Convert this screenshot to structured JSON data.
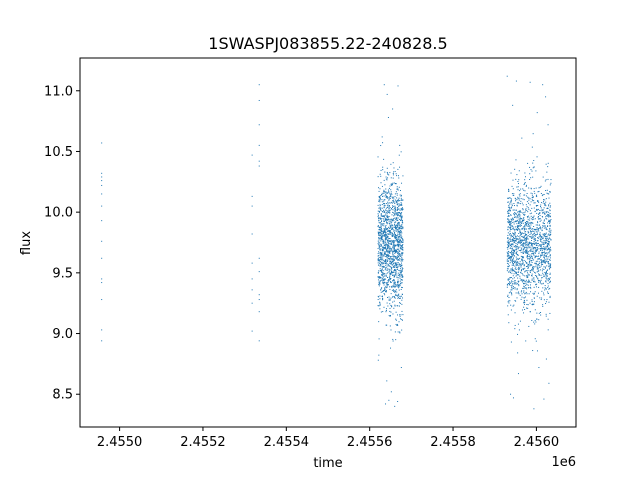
{
  "chart_data": {
    "type": "scatter",
    "title": "1SWASPJ083855.22-240828.5",
    "xlabel": "time",
    "ylabel": "flux",
    "x_offset_label": "1e6",
    "xlim": [
      2454905,
      2456095
    ],
    "ylim": [
      8.23,
      11.27
    ],
    "x_ticks": [
      2455000,
      2455200,
      2455400,
      2455600,
      2455800,
      2456000
    ],
    "x_tick_labels": [
      "2.4550",
      "2.4552",
      "2.4554",
      "2.4556",
      "2.4558",
      "2.4560"
    ],
    "y_ticks": [
      8.5,
      9.0,
      9.5,
      10.0,
      10.5,
      11.0
    ],
    "y_tick_labels": [
      "8.5",
      "9.0",
      "9.5",
      "10.0",
      "10.5",
      "11.0"
    ],
    "grid": false,
    "legend": "none",
    "marker_color": "#1f77b4",
    "series": [
      {
        "points": [
          [
            2454957,
            10.57
          ],
          [
            2454957,
            10.32
          ],
          [
            2454957,
            10.29
          ],
          [
            2454957,
            10.26
          ],
          [
            2454957,
            10.22
          ],
          [
            2454957,
            10.15
          ],
          [
            2454957,
            10.05
          ],
          [
            2454957,
            9.93
          ],
          [
            2454957,
            9.76
          ],
          [
            2454957,
            9.62
          ],
          [
            2454957,
            9.45
          ],
          [
            2454957,
            9.42
          ],
          [
            2454957,
            9.28
          ],
          [
            2454957,
            9.03
          ],
          [
            2454957,
            8.94
          ],
          [
            2455318,
            10.47
          ],
          [
            2455318,
            10.13
          ],
          [
            2455318,
            10.05
          ],
          [
            2455318,
            9.82
          ],
          [
            2455318,
            9.58
          ],
          [
            2455318,
            9.45
          ],
          [
            2455318,
            9.36
          ],
          [
            2455318,
            9.25
          ],
          [
            2455318,
            9.02
          ],
          [
            2455335,
            11.05
          ],
          [
            2455335,
            10.92
          ],
          [
            2455335,
            10.72
          ],
          [
            2455335,
            10.55
          ],
          [
            2455335,
            10.42
          ],
          [
            2455335,
            10.38
          ],
          [
            2455335,
            9.62
          ],
          [
            2455335,
            9.51
          ],
          [
            2455335,
            9.32
          ],
          [
            2455335,
            9.28
          ],
          [
            2455335,
            9.18
          ],
          [
            2455335,
            8.94
          ]
        ]
      }
    ],
    "clusters": [
      {
        "x_start": 2455620,
        "x_end": 2455680,
        "y_center": 9.72,
        "y_spread": 0.27,
        "count": 1500
      },
      {
        "x_start": 2455930,
        "x_end": 2456035,
        "y_center": 9.72,
        "y_spread": 0.26,
        "count": 1700
      }
    ],
    "cluster_outliers": [
      [
        2455635,
        11.05
      ],
      [
        2455642,
        10.97
      ],
      [
        2455668,
        11.04
      ],
      [
        2455655,
        10.85
      ],
      [
        2455645,
        10.78
      ],
      [
        2455630,
        10.62
      ],
      [
        2455672,
        10.55
      ],
      [
        2455638,
        8.42
      ],
      [
        2455646,
        8.45
      ],
      [
        2455660,
        8.4
      ],
      [
        2455667,
        8.44
      ],
      [
        2455652,
        8.52
      ],
      [
        2455641,
        8.61
      ],
      [
        2455676,
        8.72
      ],
      [
        2455650,
        8.88
      ],
      [
        2455930,
        11.12
      ],
      [
        2455952,
        11.08
      ],
      [
        2455985,
        11.07
      ],
      [
        2456015,
        11.05
      ],
      [
        2456022,
        10.95
      ],
      [
        2455943,
        10.88
      ],
      [
        2456002,
        10.82
      ],
      [
        2456028,
        10.72
      ],
      [
        2455965,
        10.61
      ],
      [
        2455938,
        8.5
      ],
      [
        2455945,
        8.47
      ],
      [
        2455994,
        8.38
      ],
      [
        2456018,
        8.46
      ],
      [
        2456030,
        8.59
      ],
      [
        2455957,
        8.67
      ],
      [
        2456006,
        8.72
      ],
      [
        2456024,
        8.79
      ],
      [
        2455991,
        8.86
      ],
      [
        2455940,
        8.93
      ]
    ]
  }
}
